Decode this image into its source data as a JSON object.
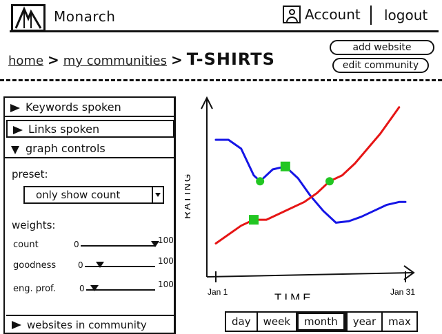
{
  "header": {
    "app_title": "Monarch",
    "account_label": "Account",
    "logout_label": "logout",
    "logo_icon": "monarch-logo-icon",
    "account_icon": "user-icon"
  },
  "breadcrumb": {
    "home": "home",
    "communities": "my communities",
    "current": "T-SHIRTS"
  },
  "actions": {
    "add_website": "add website",
    "edit_community": "edit community"
  },
  "sidebar": {
    "keywords_label": "Keywords spoken",
    "links_label": "Links spoken",
    "graph_controls_label": "graph controls",
    "preset_label": "preset:",
    "preset_value": "only show count",
    "weights_label": "weights:",
    "weights": [
      {
        "name": "count",
        "min": "0",
        "max": "100",
        "value": 1.0
      },
      {
        "name": "goodness",
        "min": "0",
        "max": "100",
        "value": 0.22
      },
      {
        "name": "eng. prof.",
        "min": "0",
        "max": "100",
        "value": 0.12
      }
    ],
    "websites_label": "websites in community"
  },
  "chart_data": {
    "type": "line",
    "xlabel": "TIME",
    "ylabel": "RATING",
    "x_tick_labels": [
      "Jan 1",
      "Jan 31"
    ],
    "x_range": [
      1,
      31
    ],
    "y_range": [
      0,
      100
    ],
    "grid": false,
    "series": [
      {
        "color": "#1515e6",
        "points": [
          [
            1,
            80
          ],
          [
            3,
            80
          ],
          [
            5,
            74
          ],
          [
            7,
            56
          ],
          [
            8,
            52
          ],
          [
            10,
            60
          ],
          [
            12,
            62
          ],
          [
            14,
            54
          ],
          [
            16,
            42
          ],
          [
            18,
            32
          ],
          [
            20,
            24
          ],
          [
            22,
            25
          ],
          [
            24,
            28
          ],
          [
            26,
            32
          ],
          [
            28,
            36
          ],
          [
            30,
            38
          ],
          [
            31,
            38
          ]
        ]
      },
      {
        "color": "#e61515",
        "points": [
          [
            1,
            10
          ],
          [
            3,
            16
          ],
          [
            5,
            22
          ],
          [
            7,
            26
          ],
          [
            9,
            26
          ],
          [
            11,
            30
          ],
          [
            13,
            34
          ],
          [
            15,
            38
          ],
          [
            17,
            44
          ],
          [
            19,
            52
          ],
          [
            21,
            56
          ],
          [
            23,
            64
          ],
          [
            25,
            74
          ],
          [
            27,
            84
          ],
          [
            29,
            96
          ],
          [
            30,
            102
          ]
        ]
      }
    ],
    "markers": {
      "color": "#22c622",
      "points": [
        [
          8,
          52
        ],
        [
          12,
          62
        ],
        [
          19,
          52
        ],
        [
          7,
          26
        ]
      ]
    }
  },
  "time_range": {
    "options": [
      "day",
      "week",
      "month",
      "year",
      "max"
    ],
    "selected": "month"
  }
}
